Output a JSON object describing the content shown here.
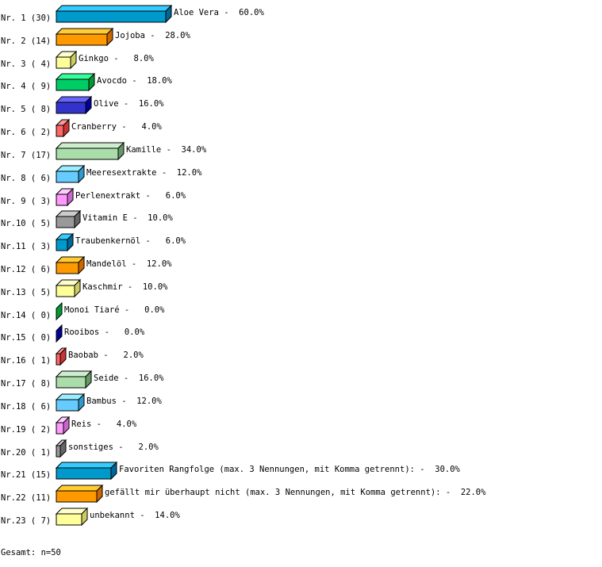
{
  "chart_data": {
    "type": "bar",
    "orientation": "horizontal",
    "style": "3d",
    "grid": false,
    "xlim": [
      0,
      60
    ],
    "categories": [
      "Nr. 1",
      "Nr. 2",
      "Nr. 3",
      "Nr. 4",
      "Nr. 5",
      "Nr. 6",
      "Nr. 7",
      "Nr. 8",
      "Nr. 9",
      "Nr.10",
      "Nr.11",
      "Nr.12",
      "Nr.13",
      "Nr.14",
      "Nr.15",
      "Nr.16",
      "Nr.17",
      "Nr.18",
      "Nr.19",
      "Nr.20",
      "Nr.21",
      "Nr.22",
      "Nr.23"
    ],
    "counts": [
      30,
      14,
      4,
      9,
      8,
      2,
      17,
      6,
      3,
      5,
      3,
      6,
      5,
      0,
      0,
      1,
      8,
      6,
      2,
      1,
      15,
      11,
      7
    ],
    "labels": [
      "Aloe Vera",
      "Jojoba",
      "Ginkgo",
      "Avocdo",
      "Olive",
      "Cranberry",
      "Kamille",
      "Meeresextrakte",
      "Perlenextrakt",
      "Vitamin E",
      "Traubenkernöl",
      "Mandelöl",
      "Kaschmir",
      "Monoi Tiaré",
      "Rooibos",
      "Baobab",
      "Seide",
      "Bambus",
      "Reis",
      "sonstiges",
      "Favoriten Rangfolge (max. 3 Nennungen, mit Komma getrennt):",
      "gefällt mir überhaupt nicht (max. 3 Nennungen, mit Komma getrennt):",
      "unbekannt"
    ],
    "values": [
      60.0,
      28.0,
      8.0,
      18.0,
      16.0,
      4.0,
      34.0,
      12.0,
      6.0,
      10.0,
      6.0,
      12.0,
      10.0,
      0.0,
      0.0,
      2.0,
      16.0,
      12.0,
      4.0,
      2.0,
      30.0,
      22.0,
      14.0
    ],
    "unit": "%",
    "palette": [
      {
        "front": "#0099CC",
        "top": "#33CCFF",
        "side": "#006699"
      },
      {
        "front": "#FF9900",
        "top": "#FFCC33",
        "side": "#CC6600"
      },
      {
        "front": "#FFFF99",
        "top": "#FFFFCC",
        "side": "#CCCC66"
      },
      {
        "front": "#00CC66",
        "top": "#33FF99",
        "side": "#009933"
      },
      {
        "front": "#3333CC",
        "top": "#6666FF",
        "side": "#000099"
      },
      {
        "front": "#FF6666",
        "top": "#FF9999",
        "side": "#CC3333"
      },
      {
        "front": "#AADDAA",
        "top": "#CCEECC",
        "side": "#669966"
      },
      {
        "front": "#66CCFF",
        "top": "#99EEFF",
        "side": "#3399CC"
      },
      {
        "front": "#FF99FF",
        "top": "#FFCCFF",
        "side": "#CC66CC"
      },
      {
        "front": "#999999",
        "top": "#CCCCCC",
        "side": "#666666"
      }
    ]
  },
  "footer": {
    "total": "Gesamt: n=50"
  }
}
